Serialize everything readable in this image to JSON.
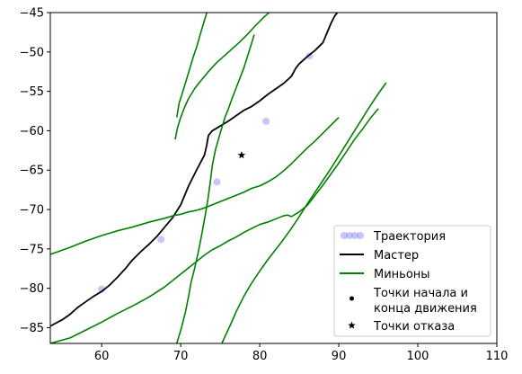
{
  "chart_data": {
    "type": "line",
    "title": "",
    "xlabel": "",
    "ylabel": "",
    "xlim": [
      53.5,
      110
    ],
    "ylim": [
      -87,
      -45
    ],
    "xticks": [
      60,
      70,
      80,
      90,
      100,
      110
    ],
    "yticks": [
      -45,
      -50,
      -55,
      -60,
      -65,
      -70,
      -75,
      -80,
      -85
    ],
    "grid": false,
    "legend_position": "lower-right",
    "colors": {
      "trajectory": "#8080f0",
      "master": "#000000",
      "minions": "#008000",
      "frame": "#000000"
    },
    "legend": [
      {
        "key": "trajectory",
        "label": "Траектория",
        "marker": "circles"
      },
      {
        "key": "master",
        "label": "Мастер",
        "marker": "line"
      },
      {
        "key": "minions",
        "label": "Миньоны",
        "marker": "line"
      },
      {
        "key": "points",
        "label_lines": [
          "Точки начала и",
          "конца движения"
        ],
        "marker": "dot"
      },
      {
        "key": "failure",
        "label": "Точки отказа",
        "marker": "star"
      }
    ],
    "series": [
      {
        "key": "trajectory",
        "kind": "scatter",
        "x": [
          60,
          67.5,
          74.6,
          80.8,
          86.3
        ],
        "y": [
          -80.1,
          -73.8,
          -66.5,
          -58.8,
          -50.5
        ]
      },
      {
        "key": "master",
        "kind": "line",
        "x": [
          53.5,
          55,
          56,
          57,
          58,
          59,
          60,
          61,
          62,
          63,
          63.8,
          65,
          66,
          67,
          68,
          69,
          70,
          71,
          72,
          73,
          73.3,
          73.5,
          74,
          75,
          76,
          77,
          78,
          79,
          80,
          81,
          82,
          83,
          84,
          84.6,
          85,
          86,
          87,
          88,
          88.5,
          89,
          89.5,
          90
        ],
        "y": [
          -84.8,
          -84,
          -83.3,
          -82.4,
          -81.7,
          -81,
          -80.4,
          -79.6,
          -78.6,
          -77.5,
          -76.5,
          -75.3,
          -74.4,
          -73.4,
          -72.2,
          -71,
          -69.4,
          -67,
          -65,
          -63.1,
          -61.8,
          -60.6,
          -60,
          -59.4,
          -58.8,
          -58.1,
          -57.4,
          -56.9,
          -56.2,
          -55.4,
          -54.7,
          -54,
          -53.1,
          -52,
          -51.5,
          -50.6,
          -49.8,
          -48.8,
          -47.6,
          -46.4,
          -45.4,
          -44.8
        ]
      },
      {
        "key": "minions",
        "kind": "line",
        "name": "inner-upper",
        "x": [
          53.5,
          56,
          58,
          60,
          62,
          64,
          66,
          68,
          69,
          70,
          71,
          72,
          73,
          74,
          75,
          76,
          77,
          78,
          79,
          80,
          81,
          82,
          83,
          84,
          85,
          86,
          87,
          88,
          89,
          90
        ],
        "y": [
          -75.7,
          -74.8,
          -74,
          -73.3,
          -72.7,
          -72.2,
          -71.6,
          -71.1,
          -70.8,
          -70.6,
          -70.3,
          -70.1,
          -69.8,
          -69.4,
          -69,
          -68.6,
          -68.2,
          -67.8,
          -67.3,
          -67,
          -66.5,
          -65.9,
          -65.1,
          -64.2,
          -63.2,
          -62.2,
          -61.3,
          -60.3,
          -59.3,
          -58.3
        ]
      },
      {
        "key": "minions",
        "kind": "line",
        "name": "inner-lower",
        "x": [
          53.5,
          56,
          58,
          60,
          62,
          64,
          66,
          68,
          70,
          72,
          73,
          74,
          75,
          76,
          77,
          78,
          79,
          80,
          81,
          82,
          83,
          83.5,
          84,
          85,
          86,
          87,
          88,
          89,
          90,
          91,
          92,
          93,
          94,
          95
        ],
        "y": [
          -87,
          -86.3,
          -85.3,
          -84.3,
          -83.2,
          -82.2,
          -81.1,
          -79.8,
          -78.2,
          -76.6,
          -75.8,
          -75.1,
          -74.6,
          -74,
          -73.5,
          -72.9,
          -72.4,
          -71.9,
          -71.6,
          -71.2,
          -70.8,
          -70.7,
          -70.9,
          -70.3,
          -69.5,
          -68.2,
          -66.9,
          -65.5,
          -64.1,
          -62.6,
          -61.1,
          -59.8,
          -58.4,
          -57.2
        ]
      },
      {
        "key": "minions",
        "kind": "line",
        "name": "left-ridge",
        "x": [
          69.5,
          70.1,
          70.6,
          71,
          71.3,
          71.8,
          72.2,
          72.6,
          73,
          73.4,
          73.7,
          74,
          74.4,
          75,
          75.6,
          76,
          76.5,
          77,
          77.5,
          78,
          78.5,
          79,
          79.3
        ],
        "y": [
          -87,
          -85,
          -83,
          -81,
          -79.3,
          -77.3,
          -75.5,
          -73.5,
          -71.3,
          -69,
          -66.8,
          -64.4,
          -62.4,
          -60.3,
          -58.3,
          -57.3,
          -55.9,
          -54.6,
          -53.3,
          -52,
          -50.4,
          -48.8,
          -47.8
        ]
      },
      {
        "key": "minions",
        "kind": "line",
        "name": "steep-diagonal",
        "x": [
          75.2,
          75.8,
          76.4,
          77,
          78,
          79,
          80,
          81,
          82,
          83,
          84,
          85,
          86,
          87,
          88,
          89,
          90,
          91,
          92,
          93,
          94,
          95,
          96
        ],
        "y": [
          -87,
          -85.7,
          -84.4,
          -83,
          -81,
          -79.3,
          -77.8,
          -76.4,
          -75.1,
          -73.8,
          -72.4,
          -70.9,
          -69.3,
          -67.8,
          -66.3,
          -64.8,
          -63.2,
          -61.6,
          -60,
          -58.4,
          -56.8,
          -55.3,
          -53.9
        ]
      },
      {
        "key": "minions",
        "kind": "line",
        "name": "upper-curve",
        "x": [
          69.3,
          69.6,
          70,
          70.5,
          71,
          71.8,
          72.5,
          73.5,
          74.5,
          75.5,
          76.5,
          77.5,
          78.5,
          79.5,
          80.5,
          81.3
        ],
        "y": [
          -61.1,
          -59.6,
          -58.3,
          -57,
          -55.9,
          -54.6,
          -53.7,
          -52.5,
          -51.4,
          -50.5,
          -49.6,
          -48.7,
          -47.7,
          -46.6,
          -45.6,
          -44.9
        ]
      },
      {
        "key": "minions",
        "kind": "line",
        "name": "outer-left",
        "x": [
          69.5,
          69.8,
          70.4,
          71,
          71.6,
          72.1,
          72.4,
          72.7,
          73,
          73.3
        ],
        "y": [
          -58.3,
          -56.5,
          -54.6,
          -52.6,
          -50.6,
          -49.1,
          -48,
          -47,
          -46,
          -45
        ]
      },
      {
        "key": "failure",
        "kind": "scatter",
        "marker": "star",
        "x": [
          77.7
        ],
        "y": [
          -63.1
        ]
      }
    ]
  }
}
